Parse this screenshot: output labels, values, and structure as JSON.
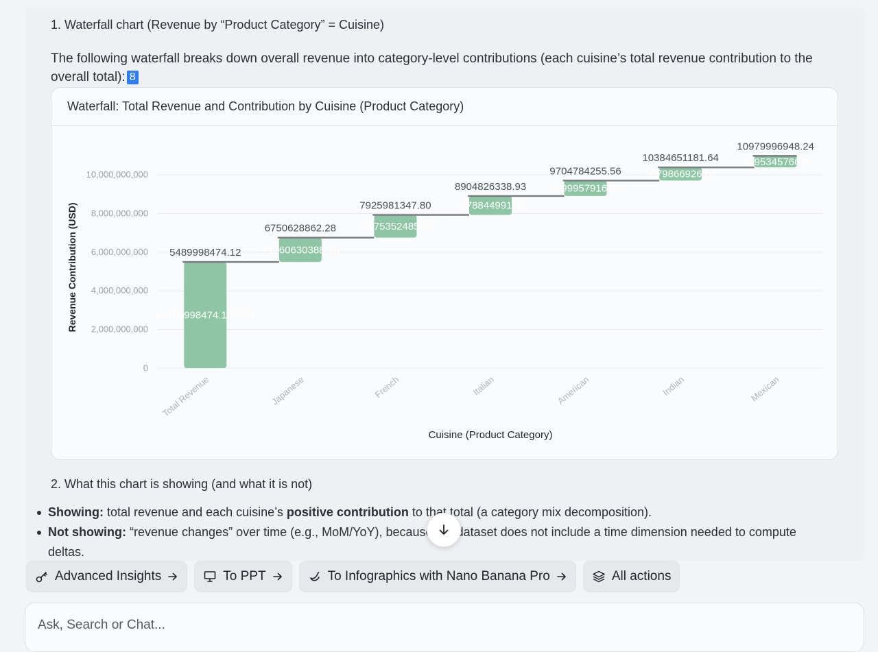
{
  "content": {
    "section1_title": "1. Waterfall chart (Revenue by “Product Category” = Cuisine)",
    "intro_text": "The following waterfall breaks down overall revenue into category-level contributions (each cuisine’s total revenue contribution to the overall total):",
    "citation": "8",
    "chart_card_title": "Waterfall: Total Revenue and Contribution by Cuisine (Product Category)",
    "section2_title": "2. What this chart is showing (and what it is not)",
    "bullets": {
      "b1_bold": "Showing:",
      "b1_text": " total revenue and each cuisine’s ",
      "b1_bold2": "positive contribution",
      "b1_text2": " to that total (a category mix decomposition).",
      "b2_bold": "Not showing:",
      "b2_text": " “revenue changes” over time (e.g., MoM/YoY), because the dataset does not include a time dimension needed to compute deltas."
    }
  },
  "actions": {
    "advanced_insights": "Advanced Insights",
    "to_ppt": "To PPT",
    "to_infographics": "To Infographics with Nano Banana Pro",
    "all_actions": "All actions"
  },
  "chat": {
    "placeholder": "Ask, Search or Chat..."
  },
  "colors": {
    "bar": "#8ec5a4",
    "connector": "#7a7d82",
    "accent": "#2f7cf6"
  },
  "chart_data": {
    "type": "bar",
    "subtype": "waterfall",
    "title": "",
    "xlabel": "Cuisine (Product Category)",
    "ylabel": "Revenue Contribution (USD)",
    "ylim": [
      0,
      11000000000
    ],
    "yticks": [
      0,
      2000000000,
      4000000000,
      6000000000,
      8000000000,
      10000000000
    ],
    "ytick_labels": [
      "0",
      "2,000,000,000",
      "4,000,000,000",
      "6,000,000,000",
      "8,000,000,000",
      "10,000,000,000"
    ],
    "grid": true,
    "categories": [
      "Total Revenue",
      "Japanese",
      "French",
      "Italian",
      "American",
      "Indian",
      "Mexican"
    ],
    "cumulative": [
      5489998474.12,
      6750628862.28,
      7925981347.8,
      8904826338.93,
      9704784255.56,
      10384651181.64,
      10979996948.24
    ],
    "cumulative_labels": [
      "5489998474.12",
      "6750628862.28",
      "7925981347.80",
      "8904826338.93",
      "9704784255.56",
      "10384651181.64",
      "10979996948.24"
    ],
    "deltas": [
      5489998474.12,
      1260630388.16,
      1175352485.52,
      978844991.13,
      799957916.63,
      679866926.08,
      595345766.6
    ],
    "delta_labels": [
      "+5489998474.120001",
      "+1260630388.16",
      "+1175352485.52",
      "+978844991.13",
      "+799957916.63",
      "+679866926.08",
      "+595345766.6"
    ]
  }
}
